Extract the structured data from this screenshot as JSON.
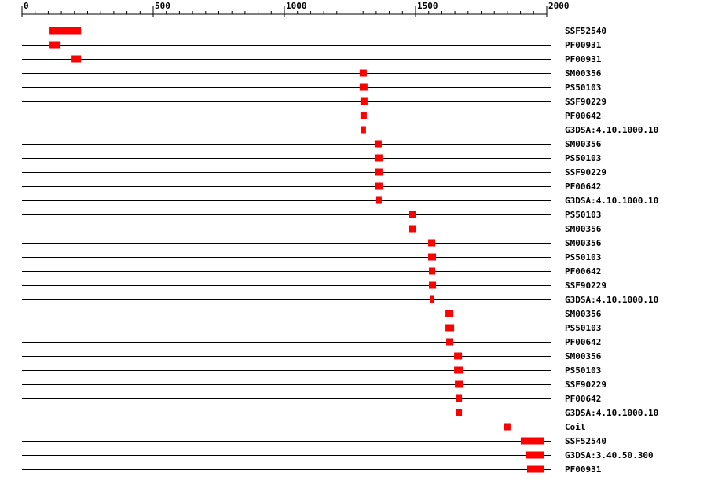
{
  "chart_data": {
    "type": "range",
    "xlim": [
      0,
      2000
    ],
    "xticks": [
      0,
      500,
      1000,
      1500,
      2000
    ],
    "xminor_step": 50,
    "color": "#ff0000",
    "tracks": [
      {
        "label": "SSF52540",
        "start": 105,
        "end": 225
      },
      {
        "label": "PF00931",
        "start": 105,
        "end": 147
      },
      {
        "label": "PF00931",
        "start": 189,
        "end": 225
      },
      {
        "label": "SM00356",
        "start": 1287,
        "end": 1314
      },
      {
        "label": "PS50103",
        "start": 1287,
        "end": 1317
      },
      {
        "label": "SSF90229",
        "start": 1290,
        "end": 1317
      },
      {
        "label": "PF00642",
        "start": 1290,
        "end": 1314
      },
      {
        "label": "G3DSA:4.10.1000.10",
        "start": 1293,
        "end": 1311
      },
      {
        "label": "SM00356",
        "start": 1344,
        "end": 1371
      },
      {
        "label": "PS50103",
        "start": 1344,
        "end": 1374
      },
      {
        "label": "SSF90229",
        "start": 1347,
        "end": 1374
      },
      {
        "label": "PF00642",
        "start": 1347,
        "end": 1374
      },
      {
        "label": "G3DSA:4.10.1000.10",
        "start": 1350,
        "end": 1371
      },
      {
        "label": "PS50103",
        "start": 1476,
        "end": 1503
      },
      {
        "label": "SM00356",
        "start": 1476,
        "end": 1503
      },
      {
        "label": "SM00356",
        "start": 1548,
        "end": 1575
      },
      {
        "label": "PS50103",
        "start": 1548,
        "end": 1578
      },
      {
        "label": "PF00642",
        "start": 1551,
        "end": 1575
      },
      {
        "label": "SSF90229",
        "start": 1551,
        "end": 1578
      },
      {
        "label": "G3DSA:4.10.1000.10",
        "start": 1554,
        "end": 1572
      },
      {
        "label": "SM00356",
        "start": 1614,
        "end": 1644
      },
      {
        "label": "PS50103",
        "start": 1614,
        "end": 1647
      },
      {
        "label": "PF00642",
        "start": 1617,
        "end": 1644
      },
      {
        "label": "SM00356",
        "start": 1647,
        "end": 1677
      },
      {
        "label": "PS50103",
        "start": 1647,
        "end": 1680
      },
      {
        "label": "SSF90229",
        "start": 1650,
        "end": 1680
      },
      {
        "label": "PF00642",
        "start": 1653,
        "end": 1677
      },
      {
        "label": "G3DSA:4.10.1000.10",
        "start": 1653,
        "end": 1677
      },
      {
        "label": "Coil",
        "start": 1838,
        "end": 1862
      },
      {
        "label": "SSF52540",
        "start": 1901,
        "end": 1991
      },
      {
        "label": "G3DSA:3.40.50.300",
        "start": 1919,
        "end": 1988
      },
      {
        "label": "PF00931",
        "start": 1925,
        "end": 1991
      }
    ]
  }
}
